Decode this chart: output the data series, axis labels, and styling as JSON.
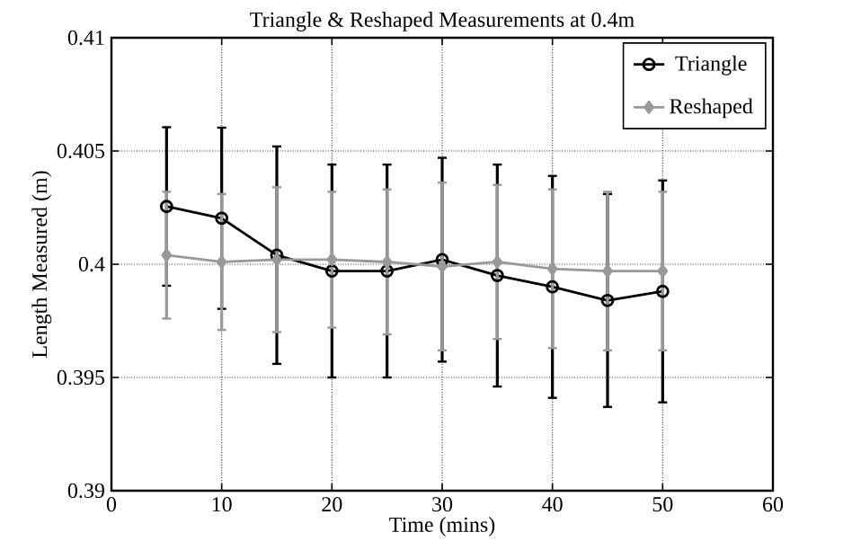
{
  "chart_data": {
    "type": "line",
    "title": "Triangle & Reshaped Measurements at 0.4m",
    "xlabel": "Time (mins)",
    "ylabel": "Length Measured (m)",
    "x": [
      5,
      10,
      15,
      20,
      25,
      30,
      35,
      40,
      45,
      50
    ],
    "series": [
      {
        "name": "Triangle",
        "color": "#000000",
        "marker": "circle",
        "values": [
          0.40255,
          0.40203,
          0.4004,
          0.3997,
          0.3997,
          0.4002,
          0.3995,
          0.399,
          0.3984,
          0.3988
        ],
        "errors": [
          0.0035,
          0.004,
          0.0048,
          0.0047,
          0.0047,
          0.0045,
          0.0049,
          0.0049,
          0.0047,
          0.0049
        ]
      },
      {
        "name": "Reshaped",
        "color": "#999999",
        "marker": "diamond",
        "values": [
          0.4004,
          0.4001,
          0.4002,
          0.4002,
          0.4001,
          0.3999,
          0.4001,
          0.3998,
          0.3997,
          0.3997
        ],
        "errors": [
          0.0028,
          0.003,
          0.0032,
          0.003,
          0.0032,
          0.0037,
          0.0034,
          0.0035,
          0.0035,
          0.0035
        ]
      }
    ],
    "xlim": [
      0,
      60
    ],
    "xticks": [
      0,
      10,
      20,
      30,
      40,
      50,
      60
    ],
    "ylim": [
      0.39,
      0.41
    ],
    "yticks": [
      {
        "value": 0.39,
        "label": "0.39"
      },
      {
        "value": 0.395,
        "label": "0.395"
      },
      {
        "value": 0.4,
        "label": "0.4"
      },
      {
        "value": 0.405,
        "label": "0.405"
      },
      {
        "value": 0.41,
        "label": "0.41"
      }
    ],
    "grid": true,
    "legend": "top right",
    "line_style": "solid"
  }
}
